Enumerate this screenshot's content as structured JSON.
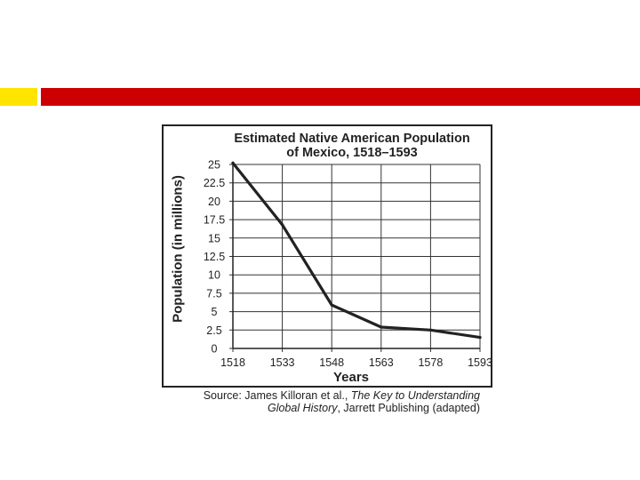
{
  "chart_data": {
    "type": "line",
    "title_line1": "Estimated Native American Population",
    "title_line2": "of Mexico, 1518–1593",
    "xlabel": "Years",
    "ylabel": "Population (in millions)",
    "x": [
      1518,
      1533,
      1548,
      1563,
      1578,
      1593
    ],
    "x_ticks": [
      "1518",
      "1533",
      "1548",
      "1563",
      "1578",
      "1593"
    ],
    "y_ticks": [
      "25",
      "22.5",
      "20",
      "17.5",
      "15",
      "12.5",
      "10",
      "7.5",
      "5",
      "2.5",
      "0"
    ],
    "y_tick_values": [
      25,
      22.5,
      20,
      17.5,
      15,
      12.5,
      10,
      7.5,
      5,
      2.5,
      0
    ],
    "xlim": [
      1518,
      1593
    ],
    "ylim": [
      0,
      25
    ],
    "grid": true,
    "series": [
      {
        "values": [
          25.2,
          16.8,
          5.9,
          2.9,
          2.5,
          1.5
        ]
      }
    ]
  },
  "source": {
    "prefix": "Source: James Killoran et al., ",
    "book_part1": "The Key to Understanding",
    "book_part2": "Global History",
    "suffix": ", Jarrett Publishing (adapted)"
  },
  "colors": {
    "band_yellow": "#ffe400",
    "band_red": "#cc0000",
    "line": "#222222",
    "grid": "#333333"
  }
}
